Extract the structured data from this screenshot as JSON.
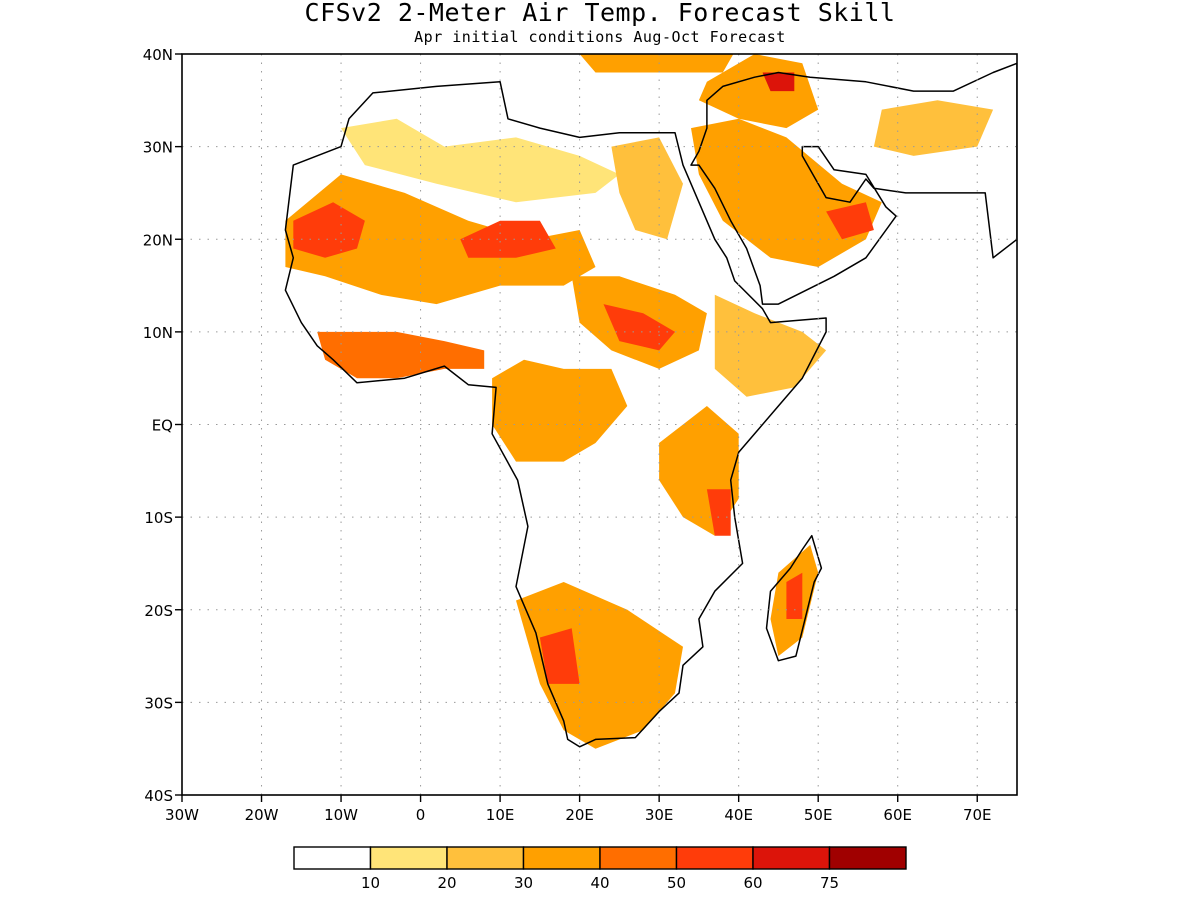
{
  "title": "CFSv2 2-Meter Air Temp. Forecast Skill",
  "subtitle": "Apr initial conditions  Aug-Oct Forecast",
  "map": {
    "lon_range": [
      -30,
      75
    ],
    "lat_range": [
      -40,
      40
    ],
    "lat_ticks": [
      {
        "value": 40,
        "label": "40N"
      },
      {
        "value": 30,
        "label": "30N"
      },
      {
        "value": 20,
        "label": "20N"
      },
      {
        "value": 10,
        "label": "10N"
      },
      {
        "value": 0,
        "label": "EQ"
      },
      {
        "value": -10,
        "label": "10S"
      },
      {
        "value": -20,
        "label": "20S"
      },
      {
        "value": -30,
        "label": "30S"
      },
      {
        "value": -40,
        "label": "40S"
      }
    ],
    "lon_ticks": [
      {
        "value": -30,
        "label": "30W"
      },
      {
        "value": -20,
        "label": "20W"
      },
      {
        "value": -10,
        "label": "10W"
      },
      {
        "value": 0,
        "label": "0"
      },
      {
        "value": 10,
        "label": "10E"
      },
      {
        "value": 20,
        "label": "20E"
      },
      {
        "value": 30,
        "label": "30E"
      },
      {
        "value": 40,
        "label": "40E"
      },
      {
        "value": 50,
        "label": "50E"
      },
      {
        "value": 60,
        "label": "60E"
      },
      {
        "value": 70,
        "label": "70E"
      }
    ],
    "grid": "dotted",
    "land_outline_color": "#000000"
  },
  "colorbar": {
    "colors": [
      "#ffffff",
      "#ffe478",
      "#ffc03c",
      "#ffa000",
      "#ff6e00",
      "#ff3c0a",
      "#dc140a",
      "#a00000"
    ],
    "labels": [
      "10",
      "20",
      "30",
      "40",
      "50",
      "60",
      "75"
    ]
  },
  "skill_regions": [
    {
      "name": "west-africa-sahel",
      "level": 3,
      "points": [
        [
          -17,
          22
        ],
        [
          -10,
          27
        ],
        [
          -2,
          25
        ],
        [
          6,
          22
        ],
        [
          14,
          20
        ],
        [
          20,
          21
        ],
        [
          22,
          17
        ],
        [
          18,
          15
        ],
        [
          10,
          15
        ],
        [
          2,
          13
        ],
        [
          -5,
          14
        ],
        [
          -12,
          16
        ],
        [
          -17,
          17
        ]
      ]
    },
    {
      "name": "mauritania-core",
      "level": 5,
      "points": [
        [
          -16,
          22
        ],
        [
          -11,
          24
        ],
        [
          -7,
          22
        ],
        [
          -8,
          19
        ],
        [
          -12,
          18
        ],
        [
          -16,
          19
        ]
      ]
    },
    {
      "name": "niger-chad-core",
      "level": 5,
      "points": [
        [
          5,
          20
        ],
        [
          10,
          22
        ],
        [
          15,
          22
        ],
        [
          17,
          19
        ],
        [
          12,
          18
        ],
        [
          6,
          18
        ]
      ]
    },
    {
      "name": "gulf-guinea-coast",
      "level": 4,
      "points": [
        [
          -13,
          10
        ],
        [
          -8,
          10
        ],
        [
          -3,
          10
        ],
        [
          3,
          9
        ],
        [
          8,
          8
        ],
        [
          8,
          6
        ],
        [
          3,
          6
        ],
        [
          -3,
          5
        ],
        [
          -8,
          5
        ],
        [
          -12,
          7
        ]
      ]
    },
    {
      "name": "sahara-north",
      "level": 1,
      "points": [
        [
          -10,
          32
        ],
        [
          -3,
          33
        ],
        [
          3,
          30
        ],
        [
          12,
          31
        ],
        [
          20,
          29
        ],
        [
          25,
          27
        ],
        [
          22,
          25
        ],
        [
          12,
          24
        ],
        [
          2,
          26
        ],
        [
          -7,
          28
        ]
      ]
    },
    {
      "name": "sudan-south-sudan",
      "level": 3,
      "points": [
        [
          19,
          16
        ],
        [
          25,
          16
        ],
        [
          32,
          14
        ],
        [
          36,
          12
        ],
        [
          35,
          8
        ],
        [
          30,
          6
        ],
        [
          24,
          8
        ],
        [
          20,
          11
        ]
      ]
    },
    {
      "name": "south-sudan-core",
      "level": 5,
      "points": [
        [
          23,
          13
        ],
        [
          28,
          12
        ],
        [
          32,
          10
        ],
        [
          30,
          8
        ],
        [
          25,
          9
        ]
      ]
    },
    {
      "name": "egypt-nile",
      "level": 2,
      "points": [
        [
          24,
          30
        ],
        [
          30,
          31
        ],
        [
          33,
          26
        ],
        [
          31,
          20
        ],
        [
          27,
          21
        ],
        [
          25,
          25
        ]
      ]
    },
    {
      "name": "ethiopia-somalia",
      "level": 2,
      "points": [
        [
          37,
          14
        ],
        [
          42,
          12
        ],
        [
          48,
          10
        ],
        [
          51,
          8
        ],
        [
          47,
          4
        ],
        [
          41,
          3
        ],
        [
          37,
          6
        ]
      ]
    },
    {
      "name": "arabia",
      "level": 3,
      "points": [
        [
          34,
          32
        ],
        [
          40,
          33
        ],
        [
          46,
          31
        ],
        [
          53,
          26
        ],
        [
          58,
          24
        ],
        [
          56,
          20
        ],
        [
          50,
          17
        ],
        [
          44,
          18
        ],
        [
          38,
          22
        ],
        [
          35,
          27
        ]
      ]
    },
    {
      "name": "arabia-core",
      "level": 5,
      "points": [
        [
          51,
          23
        ],
        [
          56,
          24
        ],
        [
          57,
          21
        ],
        [
          53,
          20
        ]
      ]
    },
    {
      "name": "iraq-turkey",
      "level": 3,
      "points": [
        [
          36,
          37
        ],
        [
          42,
          40
        ],
        [
          48,
          39
        ],
        [
          50,
          34
        ],
        [
          46,
          32
        ],
        [
          40,
          33
        ],
        [
          35,
          35
        ]
      ]
    },
    {
      "name": "iraq-core",
      "level": 6,
      "points": [
        [
          43,
          38
        ],
        [
          47,
          38
        ],
        [
          47,
          36
        ],
        [
          44,
          36
        ]
      ]
    },
    {
      "name": "east-africa-rift",
      "level": 3,
      "points": [
        [
          30,
          -2
        ],
        [
          36,
          2
        ],
        [
          40,
          -1
        ],
        [
          40,
          -8
        ],
        [
          37,
          -12
        ],
        [
          33,
          -10
        ],
        [
          30,
          -6
        ]
      ]
    },
    {
      "name": "tanzania-core",
      "level": 5,
      "points": [
        [
          36,
          -7
        ],
        [
          39,
          -7
        ],
        [
          39,
          -12
        ],
        [
          37,
          -12
        ]
      ]
    },
    {
      "name": "congo-gabon",
      "level": 3,
      "points": [
        [
          9,
          5
        ],
        [
          13,
          7
        ],
        [
          18,
          6
        ],
        [
          24,
          6
        ],
        [
          26,
          2
        ],
        [
          22,
          -2
        ],
        [
          18,
          -4
        ],
        [
          12,
          -4
        ],
        [
          9,
          0
        ]
      ]
    },
    {
      "name": "southern-africa",
      "level": 3,
      "points": [
        [
          12,
          -19
        ],
        [
          18,
          -17
        ],
        [
          26,
          -20
        ],
        [
          33,
          -24
        ],
        [
          32,
          -29
        ],
        [
          28,
          -33
        ],
        [
          22,
          -35
        ],
        [
          18,
          -33
        ],
        [
          15,
          -28
        ]
      ]
    },
    {
      "name": "namibia-core",
      "level": 5,
      "points": [
        [
          15,
          -23
        ],
        [
          19,
          -22
        ],
        [
          20,
          -28
        ],
        [
          16,
          -28
        ]
      ]
    },
    {
      "name": "madagascar",
      "level": 3,
      "points": [
        [
          45,
          -16
        ],
        [
          49,
          -13
        ],
        [
          50,
          -16
        ],
        [
          48,
          -23
        ],
        [
          45,
          -25
        ],
        [
          44,
          -21
        ]
      ]
    },
    {
      "name": "madagascar-core",
      "level": 5,
      "points": [
        [
          46,
          -17
        ],
        [
          48,
          -16
        ],
        [
          48,
          -21
        ],
        [
          46,
          -21
        ]
      ]
    },
    {
      "name": "mediterranean-north",
      "level": 3,
      "points": [
        [
          20,
          40
        ],
        [
          30,
          41
        ],
        [
          40,
          41
        ],
        [
          38,
          38
        ],
        [
          30,
          38
        ],
        [
          22,
          38
        ]
      ]
    },
    {
      "name": "iran-east",
      "level": 2,
      "points": [
        [
          58,
          34
        ],
        [
          65,
          35
        ],
        [
          72,
          34
        ],
        [
          70,
          30
        ],
        [
          62,
          29
        ],
        [
          57,
          30
        ]
      ]
    }
  ],
  "land_polygons": [
    {
      "name": "africa-coastline",
      "points": [
        [
          -17,
          21
        ],
        [
          -16,
          28
        ],
        [
          -10,
          30
        ],
        [
          -9,
          33
        ],
        [
          -6,
          35.8
        ],
        [
          2,
          36.5
        ],
        [
          10,
          37
        ],
        [
          11,
          33
        ],
        [
          15,
          32
        ],
        [
          20,
          31
        ],
        [
          25,
          31.5
        ],
        [
          32,
          31.5
        ],
        [
          33,
          28
        ],
        [
          35,
          24
        ],
        [
          37,
          20
        ],
        [
          38.5,
          18
        ],
        [
          39.5,
          15.5
        ],
        [
          43,
          12.5
        ],
        [
          44,
          11
        ],
        [
          51,
          11.5
        ],
        [
          51,
          10
        ],
        [
          48,
          5
        ],
        [
          45,
          2
        ],
        [
          42,
          -1
        ],
        [
          40,
          -3
        ],
        [
          39,
          -6
        ],
        [
          39.5,
          -10
        ],
        [
          40.5,
          -15
        ],
        [
          37,
          -18
        ],
        [
          35,
          -21
        ],
        [
          35.5,
          -24
        ],
        [
          33,
          -26
        ],
        [
          32.5,
          -29
        ],
        [
          30,
          -31
        ],
        [
          27,
          -33.8
        ],
        [
          22,
          -34
        ],
        [
          20,
          -34.8
        ],
        [
          18.5,
          -34
        ],
        [
          18,
          -32
        ],
        [
          16,
          -28
        ],
        [
          14.5,
          -22.5
        ],
        [
          12,
          -17.5
        ],
        [
          13.5,
          -11
        ],
        [
          12.2,
          -6
        ],
        [
          9,
          -1
        ],
        [
          9.5,
          4
        ],
        [
          6,
          4.3
        ],
        [
          3,
          6.3
        ],
        [
          -2,
          5
        ],
        [
          -8,
          4.5
        ],
        [
          -11,
          7
        ],
        [
          -13,
          8.5
        ],
        [
          -15,
          11
        ],
        [
          -17,
          14.5
        ],
        [
          -16,
          18
        ],
        [
          -17,
          21
        ]
      ]
    },
    {
      "name": "madagascar-coastline",
      "points": [
        [
          49.2,
          -12
        ],
        [
          50.4,
          -15.5
        ],
        [
          49.5,
          -17
        ],
        [
          47.2,
          -25
        ],
        [
          45,
          -25.5
        ],
        [
          43.5,
          -22
        ],
        [
          44,
          -18
        ],
        [
          46.5,
          -15.5
        ],
        [
          48,
          -13.5
        ]
      ]
    },
    {
      "name": "arabia-coastline",
      "points": [
        [
          34,
          28
        ],
        [
          35,
          29.5
        ],
        [
          36,
          32
        ],
        [
          36,
          35
        ],
        [
          38,
          36.5
        ],
        [
          42,
          37.5
        ],
        [
          45,
          38
        ],
        [
          49,
          37.5
        ],
        [
          56,
          37
        ],
        [
          62,
          36
        ],
        [
          67,
          36
        ],
        [
          72,
          38
        ],
        [
          75,
          39
        ],
        [
          75,
          20
        ],
        [
          72,
          18
        ],
        [
          71,
          25
        ],
        [
          66,
          25
        ],
        [
          61,
          25
        ],
        [
          57,
          25.5
        ],
        [
          56,
          26.5
        ],
        [
          54,
          24
        ],
        [
          51,
          24.5
        ],
        [
          50,
          26
        ],
        [
          48,
          29
        ],
        [
          48,
          30
        ],
        [
          50,
          30
        ],
        [
          52,
          27.5
        ],
        [
          56,
          27
        ],
        [
          58.5,
          23.5
        ],
        [
          59.8,
          22.5
        ],
        [
          56,
          18
        ],
        [
          52,
          16
        ],
        [
          45,
          13
        ],
        [
          43,
          13
        ],
        [
          42.7,
          15
        ],
        [
          41,
          19
        ],
        [
          39,
          22
        ],
        [
          37,
          25.5
        ],
        [
          35,
          28
        ]
      ]
    }
  ]
}
